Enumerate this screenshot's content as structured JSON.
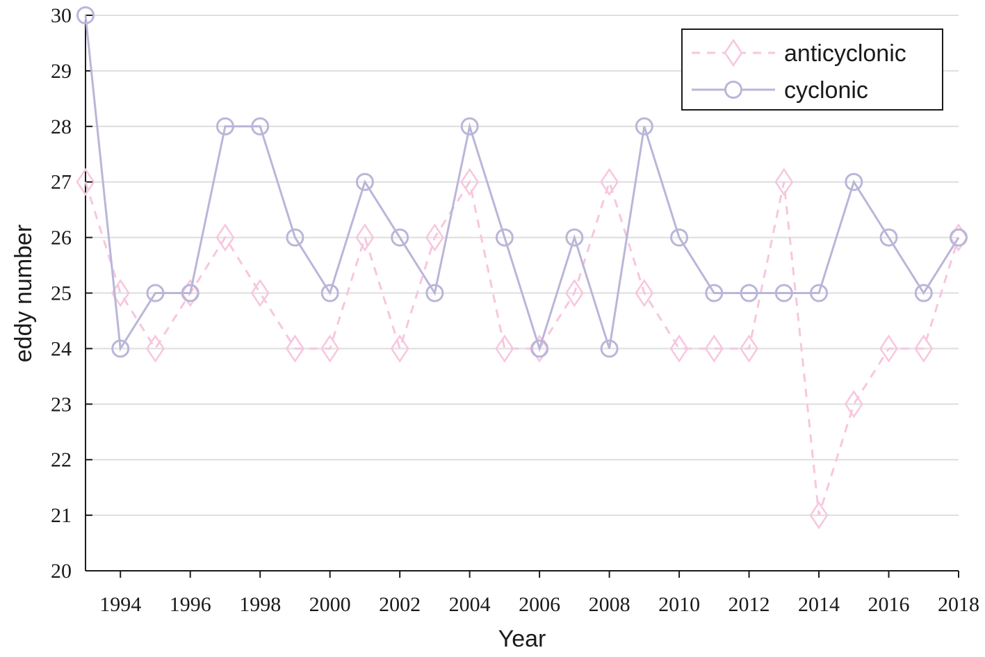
{
  "chart_data": {
    "type": "line",
    "xlabel": "Year",
    "ylabel": "eddy number",
    "xlim": [
      1993,
      2018
    ],
    "ylim": [
      20,
      30
    ],
    "grid": "horizontal",
    "legend_position": "top-right",
    "x_ticks": [
      1994,
      1996,
      1998,
      2000,
      2002,
      2004,
      2006,
      2008,
      2010,
      2012,
      2014,
      2016,
      2018
    ],
    "y_ticks": [
      20,
      21,
      22,
      23,
      24,
      25,
      26,
      27,
      28,
      29,
      30
    ],
    "x": [
      1993,
      1994,
      1995,
      1996,
      1997,
      1998,
      1999,
      2000,
      2001,
      2002,
      2003,
      2004,
      2005,
      2006,
      2007,
      2008,
      2009,
      2010,
      2011,
      2012,
      2013,
      2014,
      2015,
      2016,
      2017,
      2018
    ],
    "series": [
      {
        "name": "anticyclonic",
        "color": "#f7c6df",
        "line_style": "dashed",
        "marker": "diamond",
        "values": [
          27,
          25,
          24,
          25,
          26,
          25,
          24,
          24,
          26,
          24,
          26,
          27,
          24,
          24,
          25,
          27,
          25,
          24,
          24,
          24,
          27,
          21,
          23,
          24,
          24,
          26
        ]
      },
      {
        "name": "cyclonic",
        "color": "#b9b6d9",
        "line_style": "solid",
        "marker": "circle",
        "values": [
          30,
          24,
          25,
          25,
          28,
          28,
          26,
          25,
          27,
          26,
          25,
          28,
          26,
          24,
          26,
          24,
          28,
          26,
          25,
          25,
          25,
          25,
          27,
          26,
          25,
          26
        ]
      }
    ]
  }
}
